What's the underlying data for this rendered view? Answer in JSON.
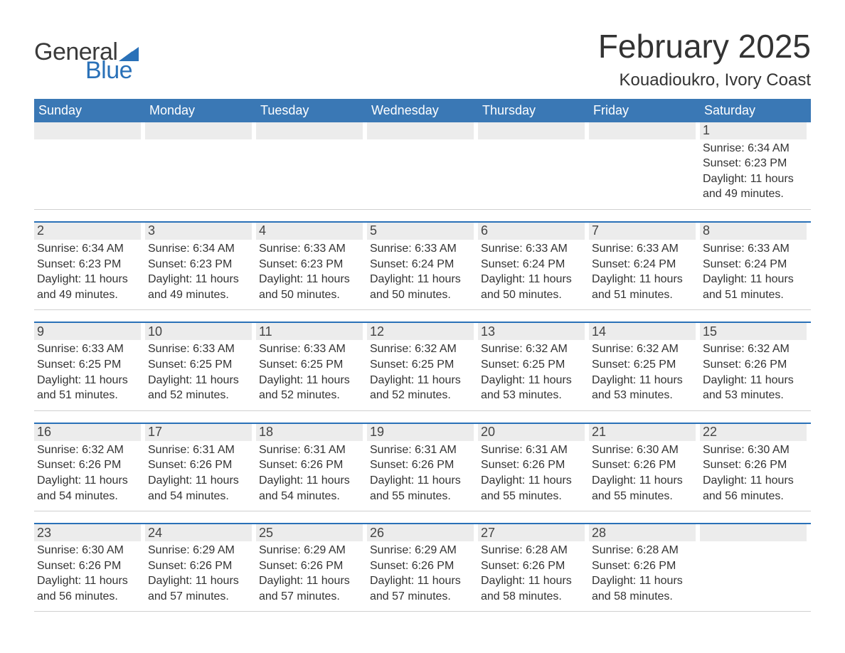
{
  "colors": {
    "header_blue": "#3a78b5",
    "accent_blue": "#2a71b8",
    "daynum_bg": "#ececec",
    "divider_gray": "#d0d0d0",
    "text_dark": "#333333",
    "background": "#ffffff"
  },
  "typography": {
    "month_title_size_pt": 34,
    "location_size_pt": 18,
    "weekday_size_pt": 14,
    "daynum_size_pt": 14,
    "body_size_pt": 12,
    "font_family": "Arial"
  },
  "logo": {
    "line1": "General",
    "line2": "Blue",
    "icon": "flag-icon"
  },
  "title": "February 2025",
  "location": "Kouadioukro, Ivory Coast",
  "weekdays": [
    "Sunday",
    "Monday",
    "Tuesday",
    "Wednesday",
    "Thursday",
    "Friday",
    "Saturday"
  ],
  "labels": {
    "sunrise": "Sunrise",
    "sunset": "Sunset",
    "daylight": "Daylight",
    "hours_word": "hours",
    "minutes_suffix": "minutes."
  },
  "calendar": {
    "type": "month-grid",
    "weeks": [
      [
        {
          "empty": true
        },
        {
          "empty": true
        },
        {
          "empty": true
        },
        {
          "empty": true
        },
        {
          "empty": true
        },
        {
          "empty": true
        },
        {
          "day": 1,
          "sunrise": "6:34 AM",
          "sunset": "6:23 PM",
          "daylight_hours": 11,
          "daylight_minutes": 49
        }
      ],
      [
        {
          "day": 2,
          "sunrise": "6:34 AM",
          "sunset": "6:23 PM",
          "daylight_hours": 11,
          "daylight_minutes": 49
        },
        {
          "day": 3,
          "sunrise": "6:34 AM",
          "sunset": "6:23 PM",
          "daylight_hours": 11,
          "daylight_minutes": 49
        },
        {
          "day": 4,
          "sunrise": "6:33 AM",
          "sunset": "6:23 PM",
          "daylight_hours": 11,
          "daylight_minutes": 50
        },
        {
          "day": 5,
          "sunrise": "6:33 AM",
          "sunset": "6:24 PM",
          "daylight_hours": 11,
          "daylight_minutes": 50
        },
        {
          "day": 6,
          "sunrise": "6:33 AM",
          "sunset": "6:24 PM",
          "daylight_hours": 11,
          "daylight_minutes": 50
        },
        {
          "day": 7,
          "sunrise": "6:33 AM",
          "sunset": "6:24 PM",
          "daylight_hours": 11,
          "daylight_minutes": 51
        },
        {
          "day": 8,
          "sunrise": "6:33 AM",
          "sunset": "6:24 PM",
          "daylight_hours": 11,
          "daylight_minutes": 51
        }
      ],
      [
        {
          "day": 9,
          "sunrise": "6:33 AM",
          "sunset": "6:25 PM",
          "daylight_hours": 11,
          "daylight_minutes": 51
        },
        {
          "day": 10,
          "sunrise": "6:33 AM",
          "sunset": "6:25 PM",
          "daylight_hours": 11,
          "daylight_minutes": 52
        },
        {
          "day": 11,
          "sunrise": "6:33 AM",
          "sunset": "6:25 PM",
          "daylight_hours": 11,
          "daylight_minutes": 52
        },
        {
          "day": 12,
          "sunrise": "6:32 AM",
          "sunset": "6:25 PM",
          "daylight_hours": 11,
          "daylight_minutes": 52
        },
        {
          "day": 13,
          "sunrise": "6:32 AM",
          "sunset": "6:25 PM",
          "daylight_hours": 11,
          "daylight_minutes": 53
        },
        {
          "day": 14,
          "sunrise": "6:32 AM",
          "sunset": "6:25 PM",
          "daylight_hours": 11,
          "daylight_minutes": 53
        },
        {
          "day": 15,
          "sunrise": "6:32 AM",
          "sunset": "6:26 PM",
          "daylight_hours": 11,
          "daylight_minutes": 53
        }
      ],
      [
        {
          "day": 16,
          "sunrise": "6:32 AM",
          "sunset": "6:26 PM",
          "daylight_hours": 11,
          "daylight_minutes": 54
        },
        {
          "day": 17,
          "sunrise": "6:31 AM",
          "sunset": "6:26 PM",
          "daylight_hours": 11,
          "daylight_minutes": 54
        },
        {
          "day": 18,
          "sunrise": "6:31 AM",
          "sunset": "6:26 PM",
          "daylight_hours": 11,
          "daylight_minutes": 54
        },
        {
          "day": 19,
          "sunrise": "6:31 AM",
          "sunset": "6:26 PM",
          "daylight_hours": 11,
          "daylight_minutes": 55
        },
        {
          "day": 20,
          "sunrise": "6:31 AM",
          "sunset": "6:26 PM",
          "daylight_hours": 11,
          "daylight_minutes": 55
        },
        {
          "day": 21,
          "sunrise": "6:30 AM",
          "sunset": "6:26 PM",
          "daylight_hours": 11,
          "daylight_minutes": 55
        },
        {
          "day": 22,
          "sunrise": "6:30 AM",
          "sunset": "6:26 PM",
          "daylight_hours": 11,
          "daylight_minutes": 56
        }
      ],
      [
        {
          "day": 23,
          "sunrise": "6:30 AM",
          "sunset": "6:26 PM",
          "daylight_hours": 11,
          "daylight_minutes": 56
        },
        {
          "day": 24,
          "sunrise": "6:29 AM",
          "sunset": "6:26 PM",
          "daylight_hours": 11,
          "daylight_minutes": 57
        },
        {
          "day": 25,
          "sunrise": "6:29 AM",
          "sunset": "6:26 PM",
          "daylight_hours": 11,
          "daylight_minutes": 57
        },
        {
          "day": 26,
          "sunrise": "6:29 AM",
          "sunset": "6:26 PM",
          "daylight_hours": 11,
          "daylight_minutes": 57
        },
        {
          "day": 27,
          "sunrise": "6:28 AM",
          "sunset": "6:26 PM",
          "daylight_hours": 11,
          "daylight_minutes": 58
        },
        {
          "day": 28,
          "sunrise": "6:28 AM",
          "sunset": "6:26 PM",
          "daylight_hours": 11,
          "daylight_minutes": 58
        },
        {
          "empty": true
        }
      ]
    ]
  }
}
